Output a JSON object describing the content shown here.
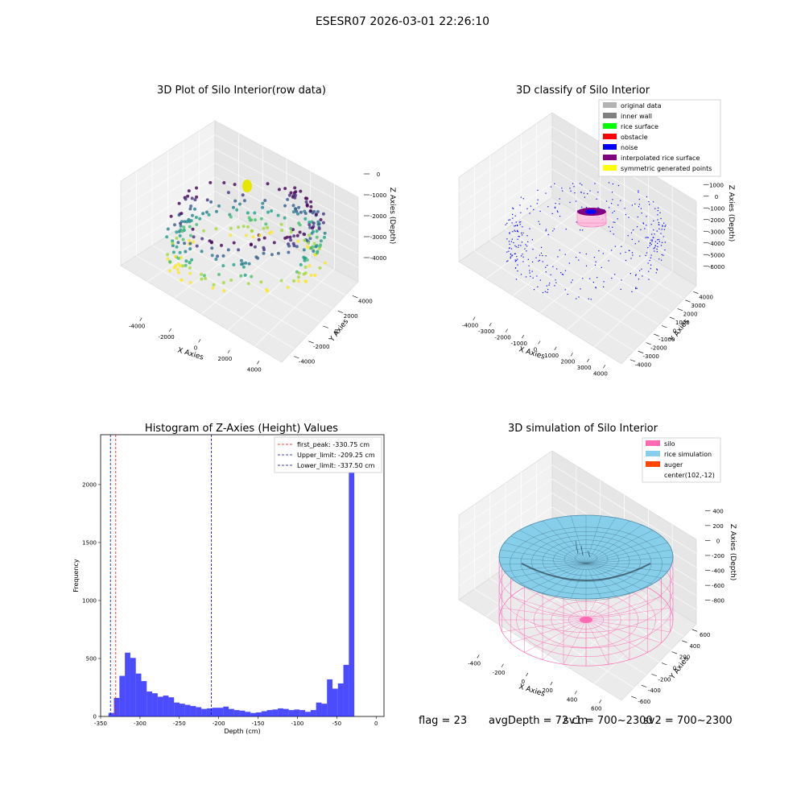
{
  "suptitle": "ESESR07 2026-03-01 22:26:10",
  "status_bar": {
    "flag": "flag = 23",
    "avg_depth": "avgDepth = 72 cm",
    "sv1": "sv1 = 700~2300",
    "sv2": "sv2 = 700~2300"
  },
  "chart_data": [
    {
      "type": "scatter",
      "projection": "3d",
      "title": "3D Plot of Silo Interior(row data)",
      "xlabel": "X Axies",
      "ylabel": "Y Axies",
      "zlabel": "Z Axies (Depth)",
      "x_ticks": [
        "-4000",
        "-2000",
        "0",
        "2000",
        "4000"
      ],
      "y_ticks": [
        "-4000",
        "-2000",
        "0",
        "2000",
        "4000"
      ],
      "z_ticks": [
        "0",
        "-1000",
        "-2000",
        "-3000",
        "-4000"
      ],
      "xlim": [
        -4500,
        4500
      ],
      "ylim": [
        -4500,
        4500
      ],
      "zlim": [
        -4500,
        300
      ],
      "colormap": "viridis",
      "marker": "yellow cluster near the top, points around the silo wall",
      "grid": true
    },
    {
      "type": "scatter",
      "projection": "3d",
      "title": "3D classify of Silo Interior",
      "xlabel": "X Axies",
      "ylabel": "Y Axies",
      "zlabel": "Z Axies (Depth)",
      "x_ticks": [
        "-4000",
        "-3000",
        "-2000",
        "-1000",
        "0",
        "1000",
        "2000",
        "3000",
        "4000"
      ],
      "y_ticks": [
        "-4000",
        "-3000",
        "-2000",
        "-1000",
        "0",
        "1000",
        "2000",
        "3000",
        "4000"
      ],
      "z_ticks": [
        "1000",
        "0",
        "-1000",
        "-2000",
        "-3000",
        "-4000",
        "-5000",
        "-6000"
      ],
      "xlim": [
        -4500,
        4500
      ],
      "ylim": [
        -4500,
        4500
      ],
      "zlim": [
        -6500,
        1200
      ],
      "legend": [
        {
          "label": "original data",
          "color": "#b3b3b3"
        },
        {
          "label": "inner wall",
          "color": "#808080"
        },
        {
          "label": "rice surface",
          "color": "#00ff00"
        },
        {
          "label": "obstacle",
          "color": "#ff0000"
        },
        {
          "label": "noise",
          "color": "#0000ff"
        },
        {
          "label": "interpolated rice surface",
          "color": "#800080"
        },
        {
          "label": "symmetric generated points",
          "color": "#ffff00"
        }
      ],
      "legend_loc": "upper right",
      "grid": true
    },
    {
      "type": "bar",
      "title": "Histogram of Z-Axies (Height) Values",
      "xlabel": "Depth (cm)",
      "ylabel": "Frequency",
      "xlim": [
        -350,
        10
      ],
      "ylim": [
        0,
        2430
      ],
      "x_ticks": [
        -350,
        -300,
        -250,
        -200,
        -150,
        -100,
        -50,
        0
      ],
      "y_ticks": [
        0,
        500,
        1000,
        1500,
        2000
      ],
      "bin_width": 6.94,
      "bin_start": -340,
      "bar_color": "#0000ff",
      "values": [
        30,
        160,
        350,
        550,
        505,
        370,
        305,
        215,
        200,
        170,
        180,
        165,
        120,
        110,
        100,
        90,
        80,
        65,
        70,
        75,
        75,
        85,
        65,
        55,
        50,
        40,
        30,
        35,
        45,
        55,
        60,
        70,
        65,
        55,
        60,
        55,
        40,
        55,
        120,
        110,
        320,
        240,
        285,
        445,
        2280
      ],
      "reference_lines": [
        {
          "label": "first_peak: -330.75 cm",
          "value": -330.75,
          "color": "#ff0000"
        },
        {
          "label": "Upper_limit: -209.25 cm",
          "value": -209.25,
          "color": "#0000aa"
        },
        {
          "label": "Lower_limit: -337.50 cm",
          "value": -337.5,
          "color": "#0000aa"
        }
      ],
      "legend_loc": "upper right"
    },
    {
      "type": "surface",
      "projection": "3d",
      "title": "3D simulation of Silo Interior",
      "xlabel": "X Axies",
      "ylabel": "Y Axies",
      "zlabel": "Z Axies (Depth)",
      "x_ticks": [
        "-400",
        "-200",
        "0",
        "200",
        "400",
        "600"
      ],
      "y_ticks": [
        "-600",
        "-400",
        "-200",
        "0",
        "200",
        "400",
        "600"
      ],
      "z_ticks": [
        "400",
        "200",
        "0",
        "-200",
        "-400",
        "-600",
        "-800"
      ],
      "xlim": [
        -600,
        750
      ],
      "ylim": [
        -750,
        700
      ],
      "zlim": [
        -900,
        450
      ],
      "legend": [
        {
          "label": "silo",
          "color": "#ff69b4"
        },
        {
          "label": "rice simulation",
          "color": "#87ceeb"
        },
        {
          "label": "auger",
          "color": "#ff4500"
        },
        {
          "label": "center(102,-12)",
          "color": ""
        }
      ],
      "legend_loc": "upper right",
      "grid": true
    }
  ]
}
